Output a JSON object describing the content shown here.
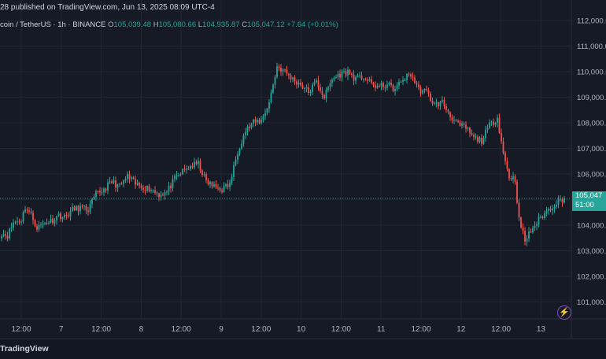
{
  "header": {
    "publish_text": "28 published on TradingView.com, Jun 13, 2025 08:09 UTC-4",
    "symbol": "coin / TetherUS · 1h · BINANCE",
    "ohlc": {
      "o_label": "O",
      "o_value": "105,039.48",
      "h_label": "H",
      "h_value": "105,080.66",
      "l_label": "L",
      "l_value": "104,935.87",
      "c_label": "C",
      "c_value": "105,047.12",
      "change": "+7.64 (+0.01%)"
    }
  },
  "price_tag": {
    "price": "105,047",
    "countdown": "51:00"
  },
  "footer": {
    "brand": "TradingView"
  },
  "colors": {
    "background": "#161a25",
    "grid": "#232733",
    "up": "#26a69a",
    "down": "#ef5350",
    "axis_text": "#b2b5be"
  },
  "icons": [
    "tradingview-flash-icon"
  ],
  "chart_data": {
    "type": "candlestick",
    "symbol": "Bitcoin / TetherUS",
    "interval": "1h",
    "exchange": "BINANCE",
    "ylim": [
      100500,
      112300
    ],
    "y_ticks": [
      "112,000.00",
      "111,000.00",
      "110,000.00",
      "109,000.00",
      "108,000.00",
      "107,000.00",
      "106,000.00",
      "105,000.00",
      "104,000.00",
      "103,000.00",
      "102,000.00",
      "101,000.00"
    ],
    "x_ticks": [
      "12:00",
      "7",
      "12:00",
      "8",
      "12:00",
      "9",
      "12:00",
      "10",
      "12:00",
      "11",
      "12:00",
      "12",
      "12:00",
      "13"
    ],
    "last_price": 105047.12,
    "anchors": [
      [
        0,
        103700
      ],
      [
        3,
        103600
      ],
      [
        6,
        104100
      ],
      [
        10,
        104200
      ],
      [
        12,
        104700
      ],
      [
        15,
        104400
      ],
      [
        18,
        103900
      ],
      [
        22,
        104100
      ],
      [
        26,
        104200
      ],
      [
        29,
        104400
      ],
      [
        32,
        104300
      ],
      [
        36,
        104600
      ],
      [
        40,
        104700
      ],
      [
        44,
        104600
      ],
      [
        48,
        105200
      ],
      [
        52,
        105400
      ],
      [
        56,
        105700
      ],
      [
        60,
        105500
      ],
      [
        64,
        105900
      ],
      [
        68,
        105600
      ],
      [
        72,
        105500
      ],
      [
        76,
        105400
      ],
      [
        80,
        105200
      ],
      [
        84,
        105300
      ],
      [
        88,
        105800
      ],
      [
        92,
        106100
      ],
      [
        96,
        106300
      ],
      [
        100,
        106400
      ],
      [
        104,
        105700
      ],
      [
        108,
        105500
      ],
      [
        112,
        105400
      ],
      [
        116,
        105600
      ],
      [
        120,
        106900
      ],
      [
        124,
        107700
      ],
      [
        128,
        108000
      ],
      [
        132,
        108100
      ],
      [
        136,
        108800
      ],
      [
        140,
        110200
      ],
      [
        144,
        110000
      ],
      [
        148,
        109700
      ],
      [
        152,
        109500
      ],
      [
        156,
        109200
      ],
      [
        160,
        109600
      ],
      [
        164,
        109000
      ],
      [
        168,
        109700
      ],
      [
        172,
        109900
      ],
      [
        176,
        110000
      ],
      [
        180,
        109700
      ],
      [
        184,
        109800
      ],
      [
        188,
        109500
      ],
      [
        192,
        109400
      ],
      [
        196,
        109500
      ],
      [
        200,
        109300
      ],
      [
        204,
        109700
      ],
      [
        208,
        109900
      ],
      [
        212,
        109300
      ],
      [
        216,
        109200
      ],
      [
        220,
        108700
      ],
      [
        224,
        108800
      ],
      [
        228,
        108300
      ],
      [
        232,
        107900
      ],
      [
        236,
        107800
      ],
      [
        240,
        107400
      ],
      [
        244,
        107300
      ],
      [
        248,
        107900
      ],
      [
        252,
        108200
      ],
      [
        255,
        106800
      ],
      [
        258,
        105900
      ],
      [
        261,
        105800
      ],
      [
        263,
        104200
      ],
      [
        266,
        103400
      ],
      [
        270,
        103900
      ],
      [
        274,
        104300
      ],
      [
        278,
        104600
      ],
      [
        282,
        104900
      ],
      [
        286,
        105047
      ]
    ]
  }
}
